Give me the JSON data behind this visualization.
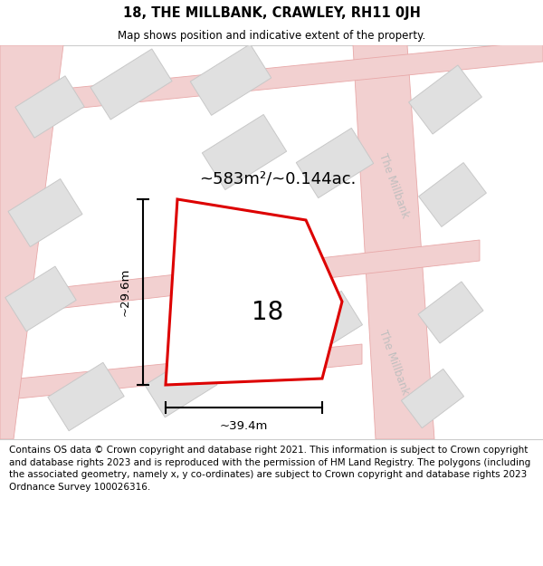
{
  "title": "18, THE MILLBANK, CRAWLEY, RH11 0JH",
  "subtitle": "Map shows position and indicative extent of the property.",
  "footer": "Contains OS data © Crown copyright and database right 2021. This information is subject to Crown copyright and database rights 2023 and is reproduced with the permission of HM Land Registry. The polygons (including the associated geometry, namely x, y co-ordinates) are subject to Crown copyright and database rights 2023 Ordnance Survey 100026316.",
  "area_label": "~583m²/~0.144ac.",
  "width_label": "~39.4m",
  "height_label": "~29.6m",
  "plot_number": "18",
  "map_bg": "#ffffff",
  "road_fill": "#f2d0d0",
  "road_edge": "#e8a8a8",
  "building_fill": "#e0e0e0",
  "building_stroke": "#c8c8c8",
  "plot_stroke": "#dd0000",
  "street_label_color": "#c0bfbf",
  "street_label": "The Millbank",
  "title_fontsize": 10.5,
  "subtitle_fontsize": 8.5,
  "footer_fontsize": 7.5,
  "dim_fontsize": 9.5,
  "area_fontsize": 13,
  "plot_num_fontsize": 20
}
